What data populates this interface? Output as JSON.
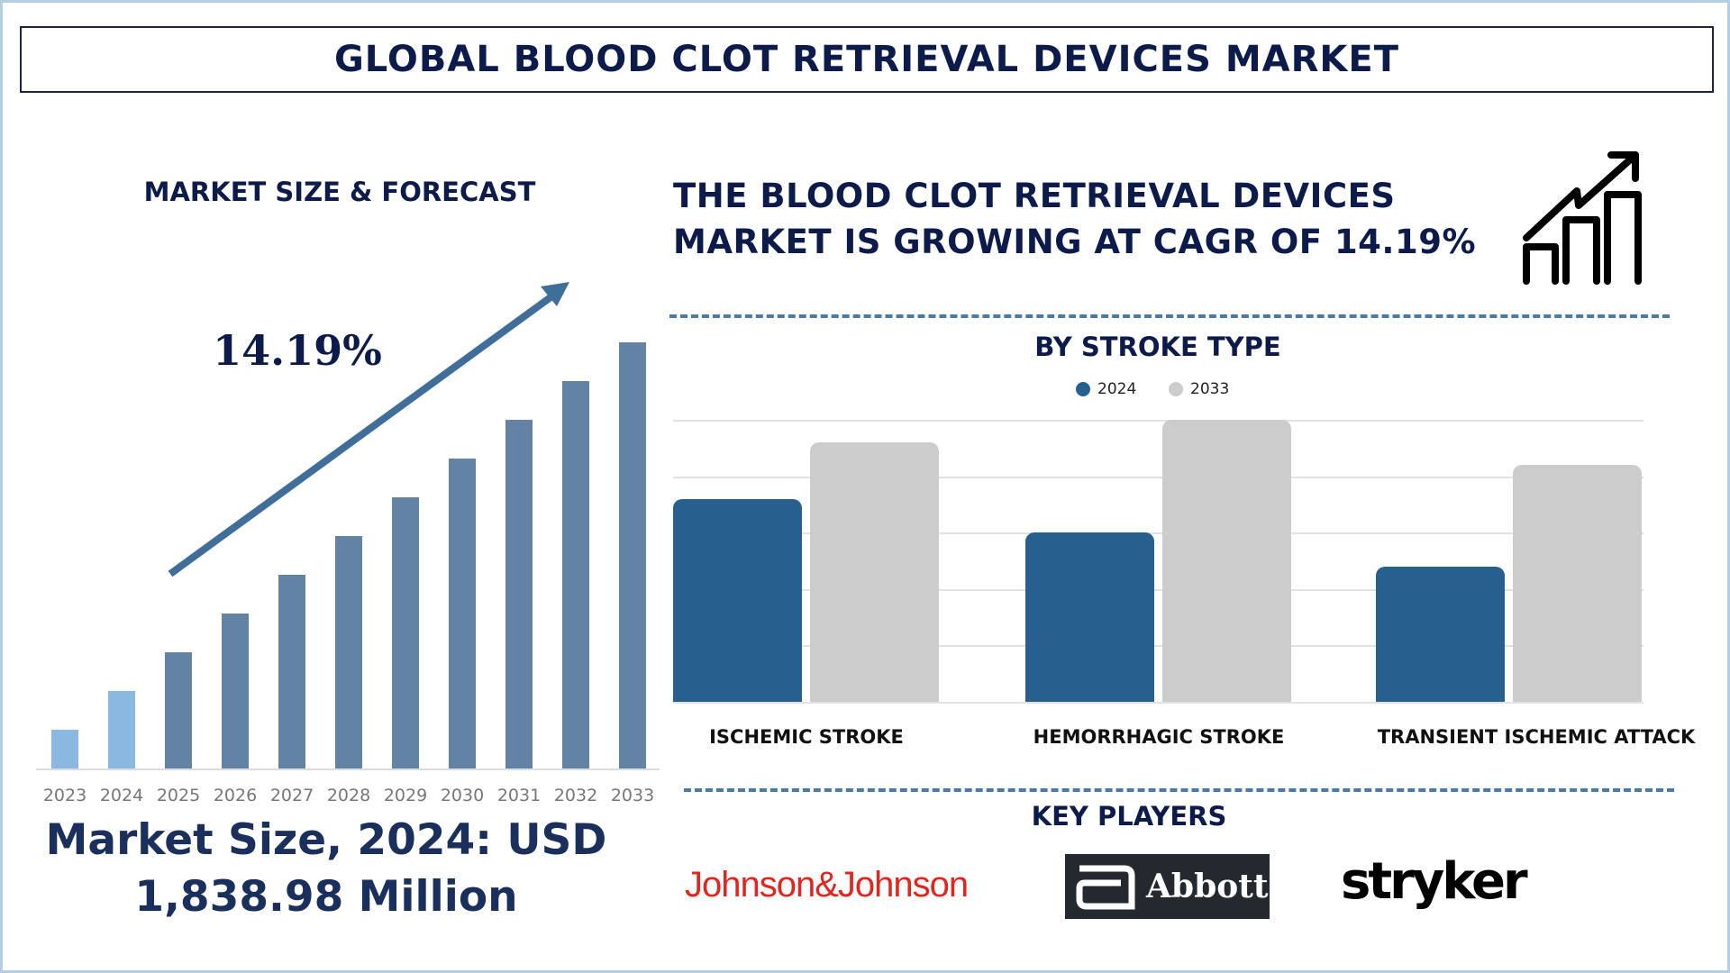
{
  "header": {
    "title": "GLOBAL BLOOD CLOT RETRIEVAL DEVICES MARKET"
  },
  "left": {
    "section_title": "MARKET SIZE & FORECAST",
    "cagr_label": "14.19%",
    "market_size_line1": "Market Size, 2024: USD",
    "market_size_line2": "1,838.98 Million"
  },
  "right": {
    "headline_line1": "THE BLOOD CLOT RETRIEVAL DEVICES",
    "headline_line2": "MARKET IS GROWING AT CAGR OF 14.19%",
    "icon": "growth-chart-icon",
    "key_players_title": "KEY PLAYERS",
    "key_players": [
      "Johnson&Johnson",
      "Abbott",
      "stryker"
    ]
  },
  "colors": {
    "navy": "#0d1b4a",
    "historic_bar": "#8ab8e0",
    "forecast_bar": "#6283a3",
    "series_2024": "#27608f",
    "series_2033": "#cccccc",
    "jnj_red": "#e0261f"
  },
  "chart_data": [
    {
      "type": "bar",
      "title": "MARKET SIZE & FORECAST",
      "categories": [
        "2023",
        "2024",
        "2025",
        "2026",
        "2027",
        "2028",
        "2029",
        "2030",
        "2031",
        "2032",
        "2033"
      ],
      "values": [
        1,
        2,
        3,
        4,
        5,
        6,
        7,
        8,
        9,
        10,
        11
      ],
      "value_note_relative": true,
      "highlighted_historic": [
        "2023",
        "2024"
      ],
      "annotation": "14.19%",
      "grid": false
    },
    {
      "type": "bar",
      "title": "BY STROKE TYPE",
      "categories": [
        "ISCHEMIC STROKE",
        "HEMORRHAGIC STROKE",
        "TRANSIENT ISCHEMIC ATTACK"
      ],
      "series": [
        {
          "name": "2024",
          "values": [
            3.6,
            3.0,
            2.4
          ]
        },
        {
          "name": "2033",
          "values": [
            4.6,
            5.0,
            4.2
          ]
        }
      ],
      "ylim": [
        0,
        5
      ],
      "grid": true,
      "legend": "top-center"
    }
  ]
}
